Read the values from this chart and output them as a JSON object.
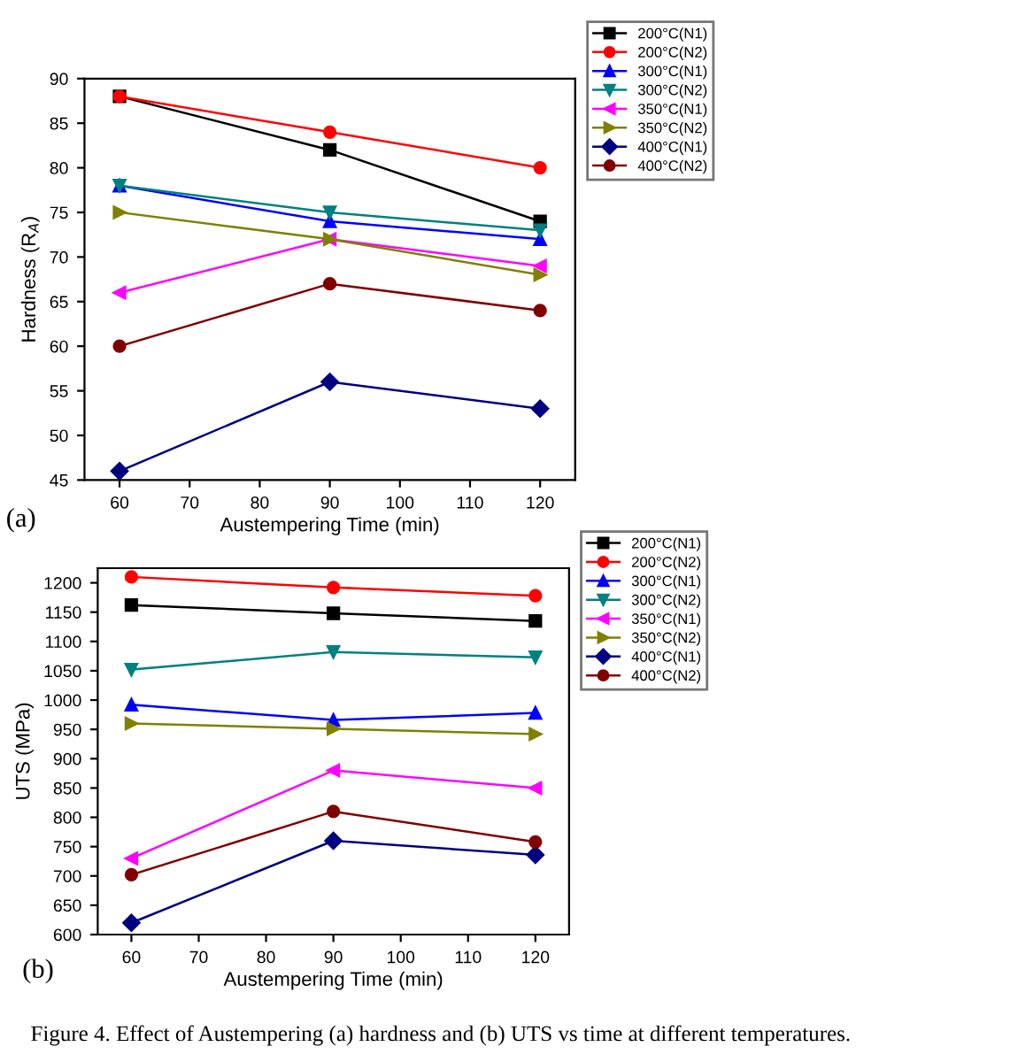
{
  "chart_data": [
    {
      "type": "line",
      "xlabel": "Austempering Time (min)",
      "ylabel": "Hardness (R$_{A}$)",
      "annotations": [
        "(a)"
      ],
      "x": [
        60,
        90,
        120
      ],
      "xlim": [
        55,
        125
      ],
      "xticks": [
        60,
        70,
        80,
        90,
        100,
        110,
        120
      ],
      "ylim": [
        45,
        90
      ],
      "yticks": [
        45,
        50,
        55,
        60,
        65,
        70,
        75,
        80,
        85,
        90
      ],
      "grid": false,
      "legend": "top right",
      "series": [
        {
          "name": "200°C(N1)",
          "color": "#000000",
          "marker": "square",
          "values": [
            88,
            82,
            74
          ]
        },
        {
          "name": "200°C(N2)",
          "color": "#ff0000",
          "marker": "circle",
          "values": [
            88,
            84,
            80
          ]
        },
        {
          "name": "300°C(N1)",
          "color": "#0000ff",
          "marker": "triangle",
          "values": [
            78,
            74,
            72
          ]
        },
        {
          "name": "300°C(N2)",
          "color": "#008080",
          "marker": "triangle-down",
          "values": [
            78,
            75,
            73
          ]
        },
        {
          "name": "350°C(N1)",
          "color": "#ff00ff",
          "marker": "triangle-left",
          "values": [
            66,
            72,
            69
          ]
        },
        {
          "name": "350°C(N2)",
          "color": "#808000",
          "marker": "triangle-right",
          "values": [
            75,
            72,
            68
          ]
        },
        {
          "name": "400°C(N1)",
          "color": "#000080",
          "marker": "diamond",
          "values": [
            46,
            56,
            53
          ]
        },
        {
          "name": "400°C(N2)",
          "color": "#800000",
          "marker": "circle",
          "values": [
            60,
            67,
            64
          ]
        }
      ]
    },
    {
      "type": "line",
      "xlabel": "Austempering Time (min)",
      "ylabel": "UTS (MPa)",
      "annotations": [
        "(b)",
        "Figure 4. Effect of Austempering (a) hardness and (b) UTS vs time at different temperatures."
      ],
      "x": [
        60,
        90,
        120
      ],
      "xlim": [
        55,
        125
      ],
      "xticks": [
        60,
        70,
        80,
        90,
        100,
        110,
        120
      ],
      "ylim": [
        600,
        1225
      ],
      "yticks": [
        600,
        650,
        700,
        750,
        800,
        850,
        900,
        950,
        1000,
        1050,
        1100,
        1150,
        1200
      ],
      "grid": false,
      "legend": "top right",
      "series": [
        {
          "name": "200°C(N1)",
          "color": "#000000",
          "marker": "square",
          "values": [
            1162,
            1148,
            1135
          ]
        },
        {
          "name": "200°C(N2)",
          "color": "#ff0000",
          "marker": "circle",
          "values": [
            1210,
            1192,
            1178
          ]
        },
        {
          "name": "300°C(N1)",
          "color": "#0000ff",
          "marker": "triangle",
          "values": [
            992,
            966,
            978
          ]
        },
        {
          "name": "300°C(N2)",
          "color": "#008080",
          "marker": "triangle-down",
          "values": [
            1052,
            1082,
            1073
          ]
        },
        {
          "name": "350°C(N1)",
          "color": "#ff00ff",
          "marker": "triangle-left",
          "values": [
            730,
            880,
            850
          ]
        },
        {
          "name": "350°C(N2)",
          "color": "#808000",
          "marker": "triangle-right",
          "values": [
            960,
            951,
            942
          ]
        },
        {
          "name": "400°C(N1)",
          "color": "#000080",
          "marker": "diamond",
          "values": [
            620,
            760,
            736
          ]
        },
        {
          "name": "400°C(N2)",
          "color": "#800000",
          "marker": "circle",
          "values": [
            702,
            810,
            758
          ]
        }
      ]
    }
  ]
}
